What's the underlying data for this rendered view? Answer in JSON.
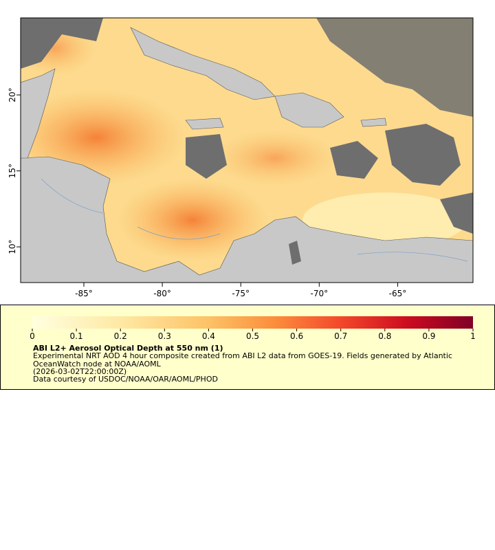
{
  "map": {
    "xlim": [
      -89.03,
      -60.2
    ],
    "ylim": [
      7.65,
      25.07
    ],
    "xticks": [
      {
        "value": -85,
        "label": "-85°"
      },
      {
        "value": -80,
        "label": "-80°"
      },
      {
        "value": -75,
        "label": "-75°"
      },
      {
        "value": -70,
        "label": "-70°"
      },
      {
        "value": -65,
        "label": "-65°"
      }
    ],
    "yticks": [
      {
        "value": 10,
        "label": "10°"
      },
      {
        "value": 15,
        "label": "15°"
      },
      {
        "value": 20,
        "label": "20°"
      }
    ]
  },
  "colorbar": {
    "lim": [
      0,
      1
    ],
    "ticks": [
      0,
      0.1,
      0.2,
      0.3,
      0.4,
      0.5,
      0.6,
      0.7,
      0.8,
      0.9,
      1
    ]
  },
  "legend": {
    "title": "ABI L2+ Aerosol Optical Depth at 550 nm (1)",
    "lines": [
      "Experimental NRT AOD 4 hour composite created from ABI L2 data from GOES-19. Fields generated by Atlantic",
      "OceanWatch node at NOAA/AOML",
      "(2026-03-02T22:00:00Z)",
      "Data courtesy of USDOC/NOAA/OAR/AOML/PHOD"
    ]
  }
}
